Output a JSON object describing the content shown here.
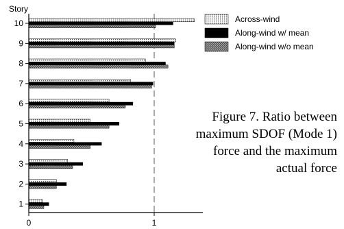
{
  "caption": "Figure 7. Ratio between maximum SDOF (Mode 1) force and the maximum actual force",
  "chart_data": {
    "type": "bar",
    "orientation": "horizontal",
    "ylabel": "Story",
    "categories": [
      "10",
      "9",
      "8",
      "7",
      "6",
      "5",
      "4",
      "3",
      "2",
      "1"
    ],
    "xlim": [
      0,
      1.5
    ],
    "xticks": [
      0,
      1
    ],
    "gridlines_x": [
      1
    ],
    "legend_position": "top-right",
    "series": [
      {
        "name": "Across-wind",
        "pattern": "dotted",
        "color": "#bdbdbd",
        "values": [
          1.32,
          1.17,
          0.93,
          0.81,
          0.64,
          0.49,
          0.36,
          0.31,
          0.22,
          0.11
        ]
      },
      {
        "name": "Along-wind w/ mean",
        "pattern": "solid",
        "color": "#000000",
        "values": [
          1.15,
          1.16,
          1.09,
          0.99,
          0.83,
          0.72,
          0.58,
          0.43,
          0.3,
          0.16
        ]
      },
      {
        "name": "Along-wind w/o mean",
        "pattern": "crosshatch",
        "color": "#808080",
        "values": [
          1.01,
          1.16,
          1.11,
          0.98,
          0.77,
          0.64,
          0.49,
          0.35,
          0.22,
          0.12
        ]
      }
    ]
  }
}
